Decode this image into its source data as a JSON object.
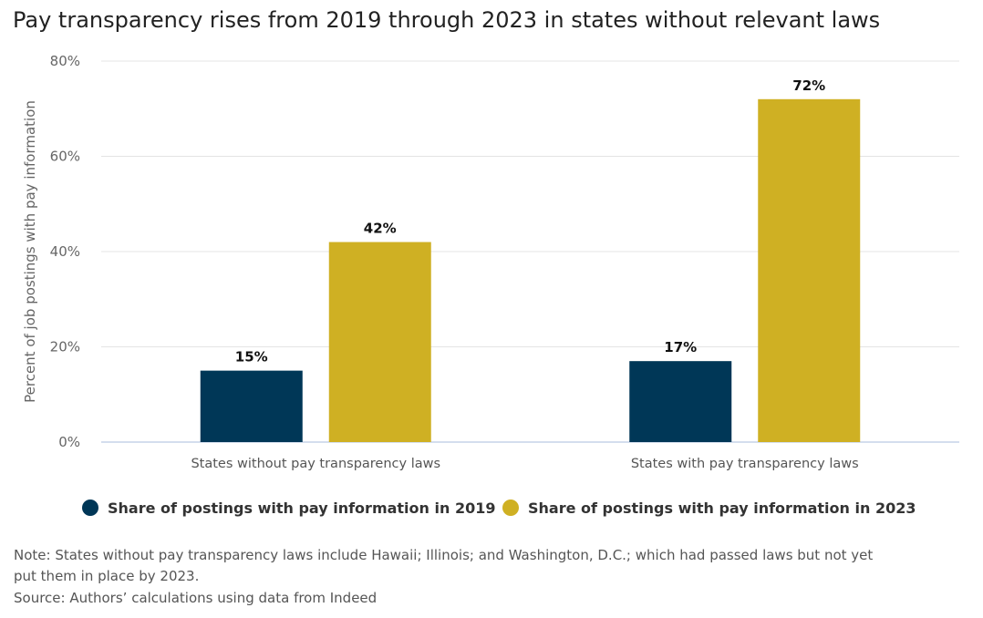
{
  "chart_data": {
    "type": "bar",
    "title": "Pay transparency rises from 2019 through 2023 in states without relevant laws",
    "ylabel": "Percent of job postings with pay information",
    "xlabel": "",
    "ylim": [
      0,
      80
    ],
    "yticks": [
      "0%",
      "20%",
      "40%",
      "60%",
      "80%"
    ],
    "ytick_values": [
      0,
      20,
      40,
      60,
      80
    ],
    "grid": true,
    "legend_placement": "bottom",
    "categories": [
      "States without pay transparency laws",
      "States with pay transparency laws"
    ],
    "series": [
      {
        "name": "Share of postings with pay information in 2019",
        "values": [
          15,
          17
        ],
        "labels": [
          "15%",
          "17%"
        ],
        "color": "#003757"
      },
      {
        "name": "Share of postings with pay information in 2023",
        "values": [
          42,
          72
        ],
        "labels": [
          "42%",
          "72%"
        ],
        "color": "#cfb023"
      }
    ]
  },
  "notes": {
    "note_line1": "Note: States without pay transparency laws include Hawaii; Illinois; and Washington, D.C.; which had passed laws but not yet",
    "note_line2": "put them in place by 2023.",
    "source": "Source: Authors’ calculations using data from Indeed"
  }
}
